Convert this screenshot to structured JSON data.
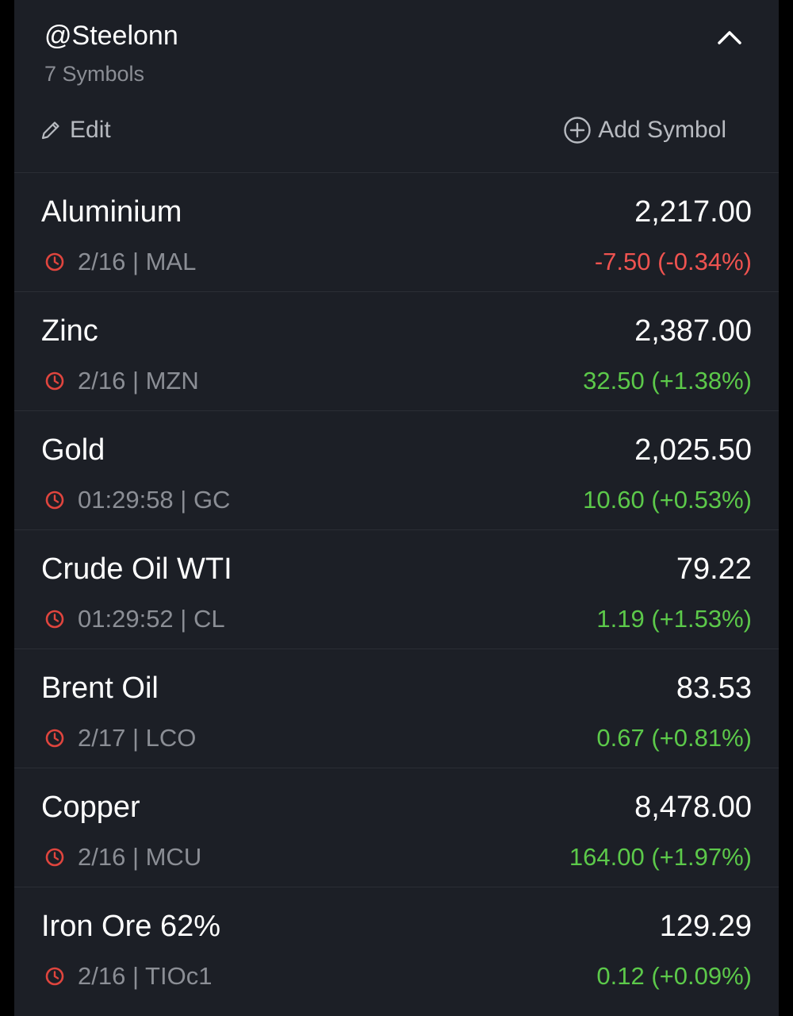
{
  "watchlist": {
    "title": "@Steelonn",
    "symbol_count": "7 Symbols",
    "edit_label": "Edit",
    "add_symbol_label": "Add Symbol"
  },
  "colors": {
    "background": "#1c1f26",
    "positive": "#5cc94a",
    "negative": "#ef5350",
    "clock_icon": "#e0453e"
  },
  "items": [
    {
      "name": "Aluminium",
      "price": "2,217.00",
      "meta": "2/16 | MAL",
      "change": "-7.50 (-0.34%)",
      "direction": "down"
    },
    {
      "name": "Zinc",
      "price": "2,387.00",
      "meta": "2/16 | MZN",
      "change": "32.50 (+1.38%)",
      "direction": "up"
    },
    {
      "name": "Gold",
      "price": "2,025.50",
      "meta": "01:29:58 | GC",
      "change": "10.60 (+0.53%)",
      "direction": "up"
    },
    {
      "name": "Crude Oil WTI",
      "price": "79.22",
      "meta": "01:29:52 | CL",
      "change": "1.19 (+1.53%)",
      "direction": "up"
    },
    {
      "name": "Brent Oil",
      "price": "83.53",
      "meta": "2/17 | LCO",
      "change": "0.67 (+0.81%)",
      "direction": "up"
    },
    {
      "name": "Copper",
      "price": "8,478.00",
      "meta": "2/16 | MCU",
      "change": "164.00 (+1.97%)",
      "direction": "up"
    },
    {
      "name": "Iron Ore 62%",
      "price": "129.29",
      "meta": "2/16 | TIOc1",
      "change": "0.12 (+0.09%)",
      "direction": "up"
    }
  ]
}
